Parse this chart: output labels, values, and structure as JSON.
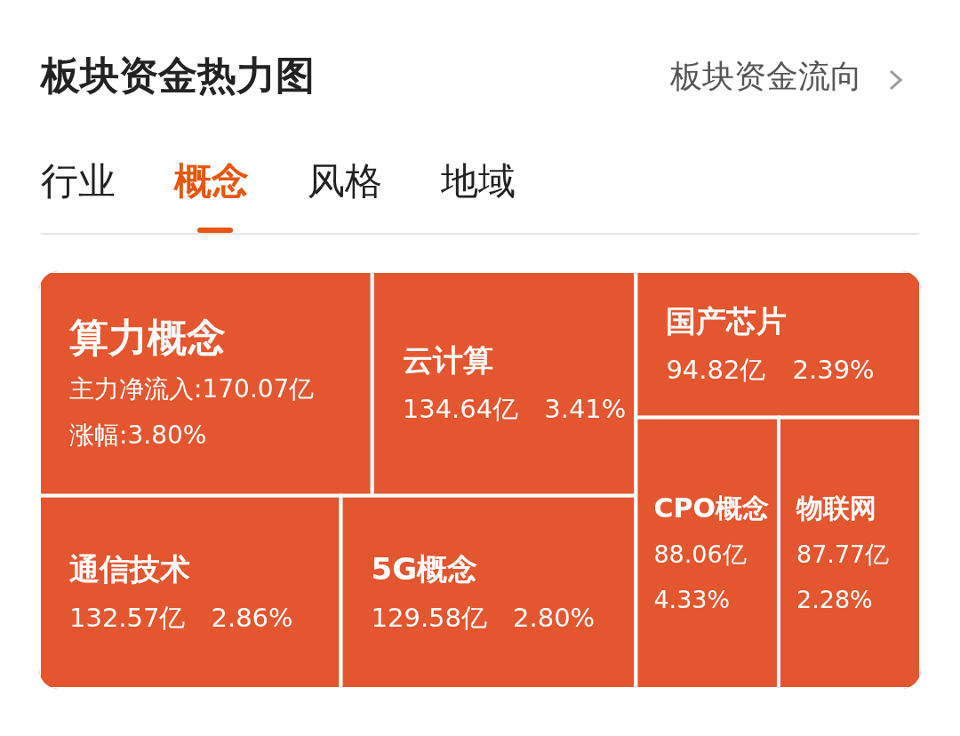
{
  "chart_data": {
    "type": "other",
    "title": "板块资金热力图",
    "annotations": [
      "板块资金流向",
      "行业",
      "概念",
      "风格",
      "地域"
    ],
    "categories": [
      "算力概念",
      "云计算",
      "国产芯片",
      "通信技术",
      "5G概念",
      "CPO概念",
      "物联网"
    ],
    "series": [
      {
        "color": "#e3562f",
        "values": [
          170.07,
          134.64,
          94.82,
          132.57,
          129.58,
          88.06,
          87.77
        ],
        "value_labels": [
          "主力净流入:170.07亿",
          "134.64亿",
          "94.82亿",
          "132.57亿",
          "129.58亿",
          "88.06亿",
          "87.77亿"
        ]
      },
      {
        "values": [
          3.8,
          3.41,
          2.39,
          2.86,
          2.8,
          4.33,
          2.28
        ],
        "value_labels": [
          "涨幅:3.80%",
          "3.41%",
          "2.39%",
          "2.86%",
          "2.80%",
          "4.33%",
          "2.28%"
        ]
      }
    ]
  }
}
